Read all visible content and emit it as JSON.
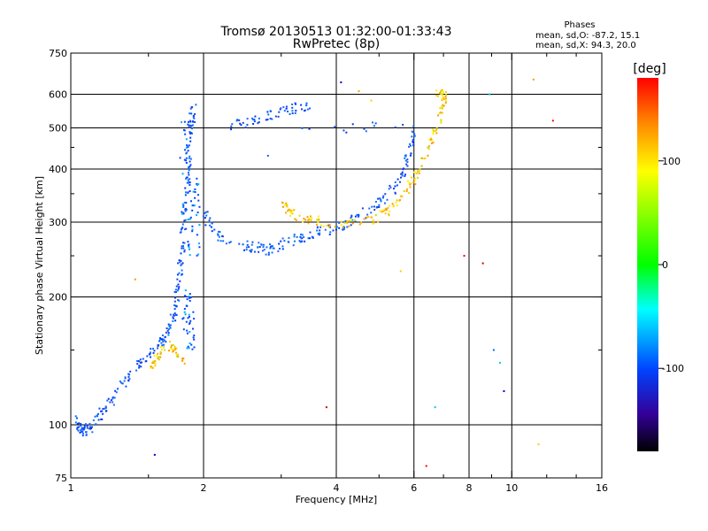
{
  "chart_data": {
    "type": "scatter",
    "title": "Tromsø 20130513 01:32:00-01:33:43",
    "subtitle": "RwPretec (8p)",
    "xlabel": "Frequency [MHz]",
    "ylabel": "Stationary phase Virtual Height [km]",
    "xscale": "log2",
    "yscale": "log",
    "xlim": [
      1,
      16
    ],
    "ylim": [
      75,
      750
    ],
    "xticks": [
      1,
      2,
      4,
      6,
      8,
      10,
      16
    ],
    "xticks_minor": [
      1.5,
      3,
      5,
      7,
      9,
      12,
      14
    ],
    "yticks": [
      75,
      100,
      200,
      300,
      400,
      500,
      600,
      750
    ],
    "grid_x": [
      2,
      4,
      6,
      8,
      10
    ],
    "grid_y": [
      100,
      200,
      300,
      400,
      500,
      600
    ],
    "info": {
      "heading": "Phases",
      "line1": "mean, sd,O: -87.2, 15.1",
      "line2": "mean, sd,X:  94.3, 20.0"
    },
    "colorbar": {
      "label": "[deg]",
      "range": [
        -180,
        180
      ],
      "ticks": [
        100,
        0,
        -100
      ],
      "colors": [
        "#ff0000",
        "#ff9900",
        "#ffff00",
        "#00ff00",
        "#00ffff",
        "#0044ff",
        "#3300aa",
        "#000000"
      ]
    },
    "o_trace": [
      {
        "f": 1.02,
        "h": 105
      },
      {
        "f": 1.05,
        "h": 98
      },
      {
        "f": 1.08,
        "h": 97
      },
      {
        "f": 1.12,
        "h": 100
      },
      {
        "f": 1.18,
        "h": 108
      },
      {
        "f": 1.25,
        "h": 115
      },
      {
        "f": 1.35,
        "h": 130
      },
      {
        "f": 1.45,
        "h": 140
      },
      {
        "f": 1.55,
        "h": 150
      },
      {
        "f": 1.62,
        "h": 158
      },
      {
        "f": 1.68,
        "h": 168
      },
      {
        "f": 1.72,
        "h": 185
      },
      {
        "f": 1.75,
        "h": 210
      },
      {
        "f": 1.78,
        "h": 240
      },
      {
        "f": 1.8,
        "h": 280
      },
      {
        "f": 1.82,
        "h": 330
      },
      {
        "f": 1.84,
        "h": 390
      },
      {
        "f": 1.86,
        "h": 450
      },
      {
        "f": 1.88,
        "h": 520
      },
      {
        "f": 1.9,
        "h": 560
      },
      {
        "f": 2.0,
        "h": 320
      },
      {
        "f": 2.1,
        "h": 285
      },
      {
        "f": 2.3,
        "h": 270
      },
      {
        "f": 2.6,
        "h": 262
      },
      {
        "f": 2.8,
        "h": 258
      },
      {
        "f": 3.0,
        "h": 265
      },
      {
        "f": 3.3,
        "h": 275
      },
      {
        "f": 3.6,
        "h": 283
      },
      {
        "f": 3.9,
        "h": 290
      },
      {
        "f": 4.2,
        "h": 298
      },
      {
        "f": 4.6,
        "h": 312
      },
      {
        "f": 5.0,
        "h": 330
      },
      {
        "f": 5.4,
        "h": 360
      },
      {
        "f": 5.7,
        "h": 400
      },
      {
        "f": 5.9,
        "h": 445
      },
      {
        "f": 6.05,
        "h": 500
      },
      {
        "f": 2.3,
        "h": 505
      },
      {
        "f": 2.6,
        "h": 520
      },
      {
        "f": 2.9,
        "h": 540
      },
      {
        "f": 3.2,
        "h": 555
      },
      {
        "f": 3.5,
        "h": 565
      }
    ],
    "x_trace": [
      {
        "f": 1.5,
        "h": 135
      },
      {
        "f": 1.58,
        "h": 145
      },
      {
        "f": 1.65,
        "h": 155
      },
      {
        "f": 1.72,
        "h": 150
      },
      {
        "f": 1.8,
        "h": 140
      },
      {
        "f": 1.9,
        "h": 590
      },
      {
        "f": 3.0,
        "h": 330
      },
      {
        "f": 3.1,
        "h": 320
      },
      {
        "f": 3.3,
        "h": 310
      },
      {
        "f": 3.6,
        "h": 302
      },
      {
        "f": 3.9,
        "h": 298
      },
      {
        "f": 4.4,
        "h": 298
      },
      {
        "f": 4.9,
        "h": 305
      },
      {
        "f": 5.3,
        "h": 320
      },
      {
        "f": 5.7,
        "h": 345
      },
      {
        "f": 6.0,
        "h": 380
      },
      {
        "f": 6.3,
        "h": 420
      },
      {
        "f": 6.6,
        "h": 470
      },
      {
        "f": 6.85,
        "h": 520
      },
      {
        "f": 7.0,
        "h": 570
      },
      {
        "f": 7.05,
        "h": 600
      },
      {
        "f": 6.8,
        "h": 610
      }
    ]
  }
}
